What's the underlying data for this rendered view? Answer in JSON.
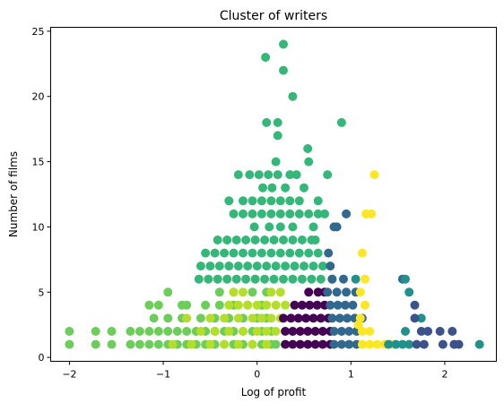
{
  "chart_data": {
    "type": "scatter",
    "title": "Cluster of writers",
    "xlabel": "Log of profit",
    "ylabel": "Number of films",
    "xlim": [
      -2.2,
      2.55
    ],
    "ylim": [
      -0.3,
      25.3
    ],
    "xticks": [
      -2,
      -1,
      0,
      1,
      2
    ],
    "yticks": [
      0,
      5,
      10,
      15,
      20,
      25
    ],
    "xtick_labels": [
      "−2",
      "−1",
      "0",
      "1",
      "2"
    ],
    "ytick_labels": [
      "0",
      "5",
      "10",
      "15",
      "20",
      "25"
    ],
    "grid": false,
    "legend": "none",
    "colors": {
      "c0": "#440154",
      "c1": "#3b528b",
      "c2": "#31688e",
      "c3": "#21918c",
      "c4": "#35b779",
      "c5": "#6ccd5a",
      "c6": "#b5de2b",
      "c7": "#fde725"
    },
    "series": [
      {
        "color_key": "c4",
        "points": [
          [
            0.28,
            24
          ],
          [
            0.09,
            23
          ],
          [
            0.28,
            22
          ],
          [
            0.38,
            20
          ],
          [
            0.9,
            18
          ],
          [
            0.1,
            18
          ],
          [
            0.22,
            18
          ],
          [
            0.22,
            17
          ],
          [
            0.54,
            16
          ],
          [
            -0.08,
            14
          ],
          [
            0.02,
            14
          ],
          [
            0.12,
            14
          ],
          [
            0.22,
            14
          ],
          [
            0.35,
            14
          ],
          [
            0.42,
            14
          ],
          [
            0.75,
            14
          ],
          [
            -0.2,
            14
          ],
          [
            -0.15,
            12
          ],
          [
            -0.05,
            12
          ],
          [
            0.05,
            12
          ],
          [
            0.15,
            12
          ],
          [
            0.25,
            12
          ],
          [
            0.35,
            12
          ],
          [
            0.45,
            12
          ],
          [
            -0.3,
            12
          ],
          [
            -0.25,
            11
          ],
          [
            -0.15,
            11
          ],
          [
            -0.05,
            11
          ],
          [
            0.05,
            11
          ],
          [
            0.15,
            11
          ],
          [
            0.25,
            11
          ],
          [
            0.35,
            11
          ],
          [
            0.45,
            11
          ],
          [
            0.55,
            11
          ],
          [
            0.65,
            11
          ],
          [
            0.72,
            11
          ],
          [
            -0.42,
            9
          ],
          [
            -0.32,
            9
          ],
          [
            -0.22,
            9
          ],
          [
            -0.12,
            9
          ],
          [
            -0.02,
            9
          ],
          [
            0.08,
            9
          ],
          [
            0.18,
            9
          ],
          [
            0.28,
            9
          ],
          [
            0.38,
            9
          ],
          [
            0.48,
            9
          ],
          [
            0.58,
            9
          ],
          [
            -0.55,
            8
          ],
          [
            -0.45,
            8
          ],
          [
            -0.35,
            8
          ],
          [
            -0.25,
            8
          ],
          [
            -0.15,
            8
          ],
          [
            -0.05,
            8
          ],
          [
            0.05,
            8
          ],
          [
            0.15,
            8
          ],
          [
            0.25,
            8
          ],
          [
            0.35,
            8
          ],
          [
            0.45,
            8
          ],
          [
            0.55,
            8
          ],
          [
            0.65,
            8
          ],
          [
            -0.6,
            7
          ],
          [
            -0.5,
            7
          ],
          [
            -0.4,
            7
          ],
          [
            -0.3,
            7
          ],
          [
            -0.2,
            7
          ],
          [
            -0.1,
            7
          ],
          [
            0,
            7
          ],
          [
            0.1,
            7
          ],
          [
            0.2,
            7
          ],
          [
            0.3,
            7
          ],
          [
            0.4,
            7
          ],
          [
            0.5,
            7
          ],
          [
            0.6,
            7
          ],
          [
            0.7,
            7
          ],
          [
            -0.62,
            6
          ],
          [
            -0.52,
            6
          ],
          [
            -0.42,
            6
          ],
          [
            -0.32,
            6
          ],
          [
            -0.22,
            6
          ],
          [
            -0.12,
            6
          ],
          [
            -0.02,
            6
          ],
          [
            0.08,
            6
          ],
          [
            0.18,
            6
          ],
          [
            0.28,
            6
          ],
          [
            0.38,
            6
          ],
          [
            0.48,
            6
          ],
          [
            0.58,
            6
          ],
          [
            0.68,
            6
          ],
          [
            0.8,
            6
          ],
          [
            0.06,
            13
          ],
          [
            0.16,
            13
          ],
          [
            0.3,
            13
          ],
          [
            0.5,
            13
          ],
          [
            -0.03,
            10
          ],
          [
            0.13,
            10
          ],
          [
            0.25,
            10
          ],
          [
            0.38,
            10
          ],
          [
            0.6,
            10
          ],
          [
            0.65,
            12
          ],
          [
            0.62,
            9
          ],
          [
            0.55,
            15
          ],
          [
            0.2,
            15
          ]
        ]
      },
      {
        "color_key": "c5",
        "points": [
          [
            -2,
            1
          ],
          [
            -2,
            2
          ],
          [
            -1.72,
            1
          ],
          [
            -1.72,
            2
          ],
          [
            -1.55,
            1
          ],
          [
            -1.55,
            2
          ],
          [
            -1.35,
            1
          ],
          [
            -1.35,
            2
          ],
          [
            -1.25,
            1
          ],
          [
            -1.25,
            2
          ],
          [
            -1.15,
            1
          ],
          [
            -1.15,
            2
          ],
          [
            -1.05,
            1
          ],
          [
            -1.05,
            2
          ],
          [
            -0.95,
            1
          ],
          [
            -0.95,
            2
          ],
          [
            -0.85,
            1
          ],
          [
            -0.85,
            2
          ],
          [
            -0.75,
            1
          ],
          [
            -0.75,
            2
          ],
          [
            -0.65,
            1
          ],
          [
            -0.65,
            2
          ],
          [
            -0.55,
            1
          ],
          [
            -0.55,
            2
          ],
          [
            -0.45,
            1
          ],
          [
            -0.45,
            2
          ],
          [
            -0.35,
            1
          ],
          [
            -0.35,
            2
          ],
          [
            -0.25,
            1
          ],
          [
            -0.25,
            2
          ],
          [
            -0.15,
            1
          ],
          [
            -0.15,
            2
          ],
          [
            -0.05,
            1
          ],
          [
            -0.05,
            2
          ],
          [
            0.05,
            1
          ],
          [
            0.05,
            2
          ],
          [
            0.15,
            1
          ],
          [
            0.15,
            2
          ],
          [
            0.2,
            1
          ],
          [
            -1.1,
            3
          ],
          [
            -0.95,
            3
          ],
          [
            -0.8,
            3
          ],
          [
            -0.6,
            3
          ],
          [
            -0.45,
            3
          ],
          [
            -0.3,
            3
          ],
          [
            -0.15,
            3
          ],
          [
            0,
            3
          ],
          [
            0.1,
            3
          ],
          [
            -1.15,
            4
          ],
          [
            -1.05,
            4
          ],
          [
            -0.75,
            4
          ],
          [
            -0.55,
            4
          ],
          [
            -0.4,
            4
          ],
          [
            -0.25,
            4
          ],
          [
            -0.1,
            4
          ],
          [
            0.05,
            4
          ],
          [
            -0.95,
            5
          ],
          [
            -0.4,
            5
          ],
          [
            -0.25,
            5
          ],
          [
            -0.05,
            5
          ],
          [
            0.1,
            5
          ],
          [
            -0.8,
            4
          ]
        ]
      },
      {
        "color_key": "c6",
        "points": [
          [
            -0.9,
            1
          ],
          [
            -0.7,
            1
          ],
          [
            -0.5,
            1
          ],
          [
            -0.35,
            1
          ],
          [
            -0.2,
            1
          ],
          [
            -0.05,
            1
          ],
          [
            0.1,
            1
          ],
          [
            -0.6,
            2
          ],
          [
            -0.45,
            2
          ],
          [
            -0.3,
            2
          ],
          [
            -0.15,
            2
          ],
          [
            0,
            2
          ],
          [
            0.1,
            2
          ],
          [
            0.2,
            2
          ],
          [
            -0.75,
            3
          ],
          [
            -0.5,
            3
          ],
          [
            -0.35,
            3
          ],
          [
            -0.2,
            3
          ],
          [
            -0.05,
            3
          ],
          [
            0.05,
            3
          ],
          [
            0.15,
            3
          ],
          [
            0.25,
            3
          ],
          [
            -0.3,
            4
          ],
          [
            -0.2,
            4
          ],
          [
            -0.1,
            4
          ],
          [
            0,
            4
          ],
          [
            0.1,
            4
          ],
          [
            0.2,
            4
          ],
          [
            0.3,
            4
          ],
          [
            -0.25,
            5
          ],
          [
            -0.15,
            5
          ],
          [
            0.15,
            5
          ],
          [
            0.25,
            5
          ]
        ]
      },
      {
        "color_key": "c0",
        "points": [
          [
            0.3,
            1
          ],
          [
            0.38,
            1
          ],
          [
            0.46,
            1
          ],
          [
            0.54,
            1
          ],
          [
            0.62,
            1
          ],
          [
            0.7,
            1
          ],
          [
            0.78,
            1
          ],
          [
            0.3,
            2
          ],
          [
            0.38,
            2
          ],
          [
            0.46,
            2
          ],
          [
            0.54,
            2
          ],
          [
            0.62,
            2
          ],
          [
            0.7,
            2
          ],
          [
            0.78,
            2
          ],
          [
            0.28,
            3
          ],
          [
            0.36,
            3
          ],
          [
            0.44,
            3
          ],
          [
            0.52,
            3
          ],
          [
            0.6,
            3
          ],
          [
            0.68,
            3
          ],
          [
            0.76,
            3
          ],
          [
            0.4,
            4
          ],
          [
            0.48,
            4
          ],
          [
            0.56,
            4
          ],
          [
            0.64,
            4
          ],
          [
            0.72,
            4
          ],
          [
            0.55,
            5
          ],
          [
            0.65,
            5
          ],
          [
            0.72,
            5
          ]
        ]
      },
      {
        "color_key": "c2",
        "points": [
          [
            0.82,
            1
          ],
          [
            0.9,
            1
          ],
          [
            0.98,
            1
          ],
          [
            1.06,
            1
          ],
          [
            0.82,
            2
          ],
          [
            0.9,
            2
          ],
          [
            0.98,
            2
          ],
          [
            1.06,
            2
          ],
          [
            0.8,
            3
          ],
          [
            0.88,
            3
          ],
          [
            0.96,
            3
          ],
          [
            1.04,
            3
          ],
          [
            1.12,
            3
          ],
          [
            0.78,
            4
          ],
          [
            0.86,
            4
          ],
          [
            0.94,
            4
          ],
          [
            1.02,
            4
          ],
          [
            0.75,
            5
          ],
          [
            0.85,
            5
          ],
          [
            0.95,
            5
          ],
          [
            1.05,
            5
          ],
          [
            0.8,
            6
          ],
          [
            0.92,
            6
          ],
          [
            0.76,
            8
          ],
          [
            0.82,
            10
          ],
          [
            0.85,
            10
          ],
          [
            0.78,
            7
          ],
          [
            0.95,
            11
          ],
          [
            1.55,
            6
          ]
        ]
      },
      {
        "color_key": "c7",
        "points": [
          [
            1.12,
            1
          ],
          [
            1.2,
            1
          ],
          [
            1.28,
            1
          ],
          [
            1.36,
            1
          ],
          [
            1.44,
            1
          ],
          [
            1.12,
            2
          ],
          [
            1.2,
            2
          ],
          [
            1.1,
            3
          ],
          [
            1.15,
            4
          ],
          [
            1.1,
            5
          ],
          [
            1.15,
            6
          ],
          [
            1.12,
            8
          ],
          [
            1.16,
            11
          ],
          [
            1.22,
            11
          ],
          [
            1.25,
            14
          ],
          [
            1.08,
            2.5
          ]
        ]
      },
      {
        "color_key": "c3",
        "points": [
          [
            1.62,
            1
          ],
          [
            1.48,
            1
          ],
          [
            1.55,
            1
          ],
          [
            1.58,
            2
          ],
          [
            1.62,
            5
          ],
          [
            1.58,
            6
          ],
          [
            1.75,
            3
          ],
          [
            2.37,
            1
          ],
          [
            1.05,
            6
          ],
          [
            1.4,
            1
          ]
        ]
      },
      {
        "color_key": "c1",
        "points": [
          [
            1.7,
            1
          ],
          [
            1.78,
            1
          ],
          [
            1.75,
            2
          ],
          [
            1.82,
            2
          ],
          [
            1.95,
            2
          ],
          [
            1.98,
            1
          ],
          [
            2.08,
            2
          ],
          [
            2.15,
            1
          ],
          [
            1.68,
            3
          ],
          [
            1.68,
            4
          ],
          [
            2.1,
            1
          ]
        ]
      }
    ]
  }
}
